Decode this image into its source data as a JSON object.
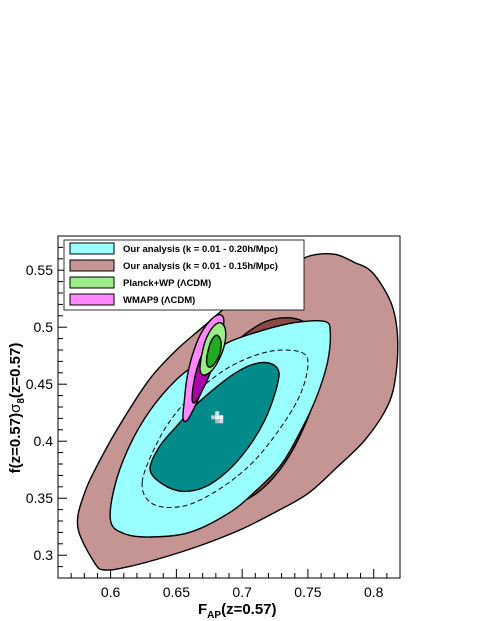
{
  "chart_data": {
    "type": "contour",
    "x_axis_title": {
      "main": "F",
      "sub": "AP",
      "rest": "(z=0.57)"
    },
    "y_axis_title": {
      "p1": "f(z=0.57)",
      "sym": "σ",
      "sub": "8",
      "p2": "(z=0.57)"
    },
    "xlim": [
      0.56,
      0.82
    ],
    "ylim": [
      0.28,
      0.58
    ],
    "x_ticks": [
      {
        "value": 0.6,
        "label": "0.6"
      },
      {
        "value": 0.65,
        "label": "0.65"
      },
      {
        "value": 0.7,
        "label": "0.7"
      },
      {
        "value": 0.75,
        "label": "0.75"
      },
      {
        "value": 0.8,
        "label": "0.8"
      }
    ],
    "y_ticks": [
      {
        "value": 0.3,
        "label": "0.3"
      },
      {
        "value": 0.35,
        "label": "0.35"
      },
      {
        "value": 0.4,
        "label": "0.4"
      },
      {
        "value": 0.45,
        "label": "0.45"
      },
      {
        "value": 0.5,
        "label": "0.5"
      },
      {
        "value": 0.55,
        "label": "0.55"
      }
    ],
    "legend": {
      "placement": "top-left",
      "entries": [
        {
          "label": "Our analysis (k = 0.01 - 0.20h/Mpc)",
          "color": "#99ffff"
        },
        {
          "label": "Our analysis (k = 0.01 - 0.15h/Mpc)",
          "color": "#c49593"
        },
        {
          "label": "Planck+WP (ΛCDM)",
          "color": "#99ee88"
        },
        {
          "label": "WMAP9 (ΛCDM)",
          "color": "#ff88ff"
        }
      ]
    },
    "series": [
      {
        "label_ref": 1,
        "contours": [
          {
            "level": "2sigma",
            "fill": "#c49593",
            "points": [
              [
                0.588,
                0.293
              ],
              [
                0.596,
                0.287
              ],
              [
                0.614,
                0.29
              ],
              [
                0.64,
                0.298
              ],
              [
                0.667,
                0.308
              ],
              [
                0.698,
                0.322
              ],
              [
                0.724,
                0.337
              ],
              [
                0.75,
                0.354
              ],
              [
                0.772,
                0.377
              ],
              [
                0.794,
                0.402
              ],
              [
                0.811,
                0.432
              ],
              [
                0.817,
                0.46
              ],
              [
                0.818,
                0.494
              ],
              [
                0.813,
                0.522
              ],
              [
                0.799,
                0.548
              ],
              [
                0.785,
                0.557
              ],
              [
                0.77,
                0.564
              ],
              [
                0.75,
                0.562
              ],
              [
                0.73,
                0.549
              ],
              [
                0.71,
                0.54
              ],
              [
                0.69,
                0.52
              ],
              [
                0.67,
                0.5
              ],
              [
                0.65,
                0.48
              ],
              [
                0.63,
                0.455
              ],
              [
                0.61,
                0.42
              ],
              [
                0.595,
                0.39
              ],
              [
                0.581,
                0.357
              ],
              [
                0.575,
                0.325
              ]
            ]
          },
          {
            "level": "1sigma",
            "fill": "#8b4a48",
            "points": [
              [
                0.65,
                0.383
              ],
              [
                0.66,
                0.36
              ],
              [
                0.675,
                0.346
              ],
              [
                0.695,
                0.345
              ],
              [
                0.715,
                0.358
              ],
              [
                0.733,
                0.382
              ],
              [
                0.748,
                0.415
              ],
              [
                0.758,
                0.45
              ],
              [
                0.759,
                0.48
              ],
              [
                0.752,
                0.5
              ],
              [
                0.738,
                0.508
              ],
              [
                0.718,
                0.505
              ],
              [
                0.698,
                0.49
              ],
              [
                0.678,
                0.467
              ],
              [
                0.662,
                0.44
              ],
              [
                0.652,
                0.41
              ]
            ]
          }
        ]
      },
      {
        "label_ref": 0,
        "contours": [
          {
            "level": "2sigma",
            "fill": "#99ffff",
            "points": [
              [
                0.6,
                0.33
              ],
              [
                0.61,
                0.319
              ],
              [
                0.63,
                0.316
              ],
              [
                0.66,
                0.32
              ],
              [
                0.69,
                0.337
              ],
              [
                0.71,
                0.356
              ],
              [
                0.73,
                0.38
              ],
              [
                0.745,
                0.41
              ],
              [
                0.757,
                0.44
              ],
              [
                0.765,
                0.47
              ],
              [
                0.767,
                0.495
              ],
              [
                0.763,
                0.505
              ],
              [
                0.74,
                0.504
              ],
              [
                0.715,
                0.497
              ],
              [
                0.69,
                0.487
              ],
              [
                0.67,
                0.472
              ],
              [
                0.65,
                0.454
              ],
              [
                0.63,
                0.427
              ],
              [
                0.614,
                0.395
              ],
              [
                0.603,
                0.36
              ]
            ]
          },
          {
            "level": "1sigma",
            "fill": "#008b8b",
            "points": [
              [
                0.63,
                0.375
              ],
              [
                0.64,
                0.362
              ],
              [
                0.655,
                0.356
              ],
              [
                0.672,
                0.36
              ],
              [
                0.69,
                0.375
              ],
              [
                0.705,
                0.395
              ],
              [
                0.717,
                0.418
              ],
              [
                0.725,
                0.442
              ],
              [
                0.728,
                0.46
              ],
              [
                0.722,
                0.468
              ],
              [
                0.71,
                0.468
              ],
              [
                0.695,
                0.46
              ],
              [
                0.68,
                0.447
              ],
              [
                0.665,
                0.432
              ],
              [
                0.65,
                0.413
              ],
              [
                0.637,
                0.395
              ]
            ]
          },
          {
            "level": "dashed",
            "points": [
              [
                0.624,
                0.364
              ],
              [
                0.632,
                0.345
              ],
              [
                0.655,
                0.343
              ],
              [
                0.68,
                0.356
              ],
              [
                0.705,
                0.378
              ],
              [
                0.725,
                0.405
              ],
              [
                0.743,
                0.438
              ],
              [
                0.75,
                0.466
              ],
              [
                0.745,
                0.478
              ],
              [
                0.722,
                0.479
              ],
              [
                0.695,
                0.468
              ],
              [
                0.672,
                0.45
              ],
              [
                0.652,
                0.428
              ],
              [
                0.636,
                0.4
              ]
            ]
          }
        ],
        "best_fit": {
          "x": 0.681,
          "y": 0.421
        }
      },
      {
        "label_ref": 3,
        "contours": [
          {
            "level": "2sigma",
            "fill": "#ff88ff",
            "points": [
              [
                0.655,
                0.42
              ],
              [
                0.656,
                0.435
              ],
              [
                0.658,
                0.455
              ],
              [
                0.662,
                0.475
              ],
              [
                0.668,
                0.493
              ],
              [
                0.675,
                0.505
              ],
              [
                0.682,
                0.511
              ],
              [
                0.686,
                0.507
              ],
              [
                0.684,
                0.492
              ],
              [
                0.677,
                0.469
              ],
              [
                0.67,
                0.446
              ],
              [
                0.663,
                0.428
              ],
              [
                0.658,
                0.418
              ]
            ]
          },
          {
            "level": "1sigma",
            "fill": "#aa00aa",
            "points": [
              [
                0.662,
                0.436
              ],
              [
                0.663,
                0.45
              ],
              [
                0.666,
                0.465
              ],
              [
                0.671,
                0.48
              ],
              [
                0.677,
                0.49
              ],
              [
                0.681,
                0.486
              ],
              [
                0.679,
                0.472
              ],
              [
                0.674,
                0.455
              ],
              [
                0.668,
                0.441
              ],
              [
                0.664,
                0.434
              ]
            ]
          }
        ]
      },
      {
        "label_ref": 2,
        "contours": [
          {
            "level": "2sigma",
            "fill": "#99ee88",
            "points": [
              [
                0.668,
                0.462
              ],
              [
                0.669,
                0.474
              ],
              [
                0.672,
                0.488
              ],
              [
                0.677,
                0.499
              ],
              [
                0.683,
                0.504
              ],
              [
                0.687,
                0.499
              ],
              [
                0.687,
                0.487
              ],
              [
                0.683,
                0.473
              ],
              [
                0.677,
                0.462
              ],
              [
                0.671,
                0.458
              ]
            ]
          },
          {
            "level": "1sigma",
            "fill": "#22aa22",
            "points": [
              [
                0.673,
                0.469
              ],
              [
                0.674,
                0.479
              ],
              [
                0.677,
                0.489
              ],
              [
                0.681,
                0.493
              ],
              [
                0.684,
                0.487
              ],
              [
                0.683,
                0.477
              ],
              [
                0.679,
                0.468
              ],
              [
                0.675,
                0.465
              ]
            ]
          }
        ]
      }
    ]
  }
}
